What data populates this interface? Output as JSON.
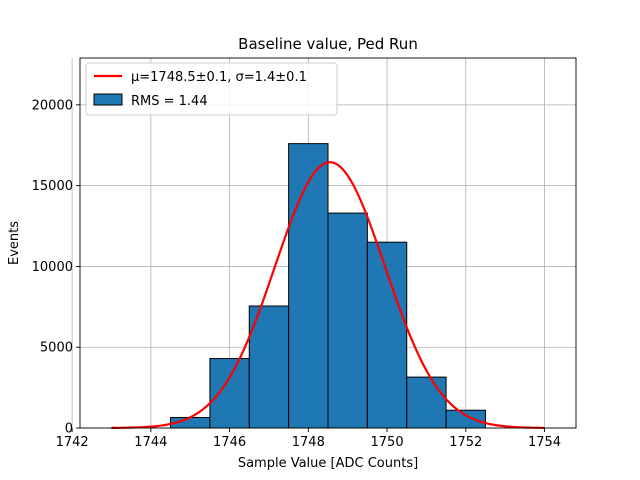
{
  "chart_data": {
    "type": "bar",
    "title": "Baseline value, Ped Run",
    "xlabel": "Sample Value [ADC Counts]",
    "ylabel": "Events",
    "xlim": [
      1742.2,
      1754.8
    ],
    "ylim": [
      0,
      22900
    ],
    "xticks": [
      1742,
      1744,
      1746,
      1748,
      1750,
      1752,
      1754
    ],
    "yticks": [
      0,
      5000,
      10000,
      15000,
      20000
    ],
    "grid": true,
    "legend_placement": "top-left",
    "histogram": {
      "name": "RMS = 1.44",
      "color": "#1f77b4",
      "bins": [
        {
          "x0": 1744.5,
          "x1": 1745.5,
          "count": 650
        },
        {
          "x0": 1745.5,
          "x1": 1746.5,
          "count": 4300
        },
        {
          "x0": 1746.5,
          "x1": 1747.5,
          "count": 7550
        },
        {
          "x0": 1747.5,
          "x1": 1748.5,
          "count": 17600
        },
        {
          "x0": 1748.5,
          "x1": 1749.5,
          "count": 13300
        },
        {
          "x0": 1749.5,
          "x1": 1750.5,
          "count": 11500
        },
        {
          "x0": 1750.5,
          "x1": 1751.5,
          "count": 3150
        },
        {
          "x0": 1751.5,
          "x1": 1752.5,
          "count": 1100
        }
      ]
    },
    "fit": {
      "name": "μ=1748.5±0.1, σ=1.4±0.1",
      "color": "#ff0000",
      "mu": 1748.55,
      "sigma": 1.4,
      "amplitude": 16450,
      "x_range": [
        1743,
        1754
      ]
    }
  }
}
